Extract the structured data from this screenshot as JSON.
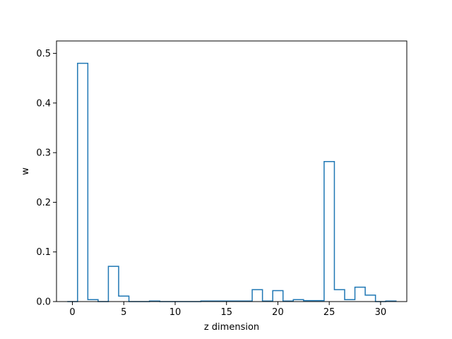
{
  "chart_data": {
    "type": "step",
    "xlabel": "z dimension",
    "ylabel": "w",
    "xlim": [
      -1.55,
      32.55
    ],
    "ylim": [
      0,
      0.525
    ],
    "x_ticks": [
      0,
      5,
      10,
      15,
      20,
      25,
      30
    ],
    "y_ticks": [
      0.0,
      0.1,
      0.2,
      0.3,
      0.4,
      0.5
    ],
    "x_tick_labels": [
      "0",
      "5",
      "10",
      "15",
      "20",
      "25",
      "30"
    ],
    "y_tick_labels": [
      "0.0",
      "0.1",
      "0.2",
      "0.3",
      "0.4",
      "0.5"
    ],
    "grid": false,
    "series": [
      {
        "color": "#1f77b4",
        "x": [
          0,
          1,
          2,
          3,
          4,
          5,
          6,
          7,
          8,
          9,
          10,
          11,
          12,
          13,
          14,
          15,
          16,
          17,
          18,
          19,
          20,
          21,
          22,
          23,
          24,
          25,
          26,
          27,
          28,
          29,
          30,
          31
        ],
        "values": [
          0.0,
          0.48,
          0.004,
          0.0,
          0.071,
          0.011,
          0.0,
          0.0,
          0.001,
          0.0,
          0.0,
          0.0,
          0.0,
          0.001,
          0.001,
          0.001,
          0.001,
          0.001,
          0.024,
          0.001,
          0.022,
          0.001,
          0.004,
          0.002,
          0.002,
          0.282,
          0.024,
          0.004,
          0.029,
          0.013,
          0.0,
          0.001
        ]
      }
    ]
  }
}
